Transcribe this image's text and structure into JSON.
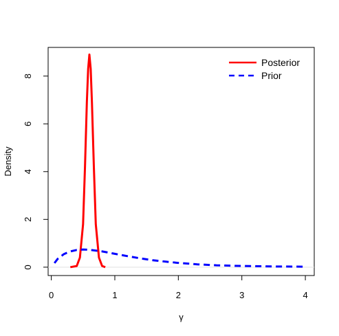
{
  "chart_data": {
    "type": "line",
    "title": "",
    "xlabel": "γ",
    "ylabel": "Density",
    "xlim": [
      -0.05,
      4.14
    ],
    "ylim": [
      -0.35,
      9.2
    ],
    "x_ticks": [
      "0",
      "1",
      "2",
      "3",
      "4"
    ],
    "y_ticks": [
      "0",
      "2",
      "4",
      "6",
      "8"
    ],
    "grid": false,
    "legend_position": "top-right",
    "series": [
      {
        "name": "Posterior",
        "color": "#ff0000",
        "line_style": "solid",
        "x": [
          0.3,
          0.4,
          0.45,
          0.5,
          0.53,
          0.56,
          0.58,
          0.6,
          0.62,
          0.64,
          0.67,
          0.7,
          0.75,
          0.8,
          0.85
        ],
        "y": [
          0.0,
          0.05,
          0.4,
          1.8,
          4.2,
          6.9,
          8.3,
          8.9,
          8.3,
          6.9,
          4.2,
          1.8,
          0.4,
          0.05,
          0.0
        ]
      },
      {
        "name": "Prior",
        "color": "#0000ff",
        "line_style": "dashed",
        "x": [
          0.05,
          0.1,
          0.2,
          0.3,
          0.4,
          0.5,
          0.6,
          0.8,
          1.0,
          1.2,
          1.4,
          1.6,
          1.8,
          2.0,
          2.3,
          2.6,
          3.0,
          3.5,
          4.0
        ],
        "y": [
          0.17,
          0.35,
          0.55,
          0.66,
          0.72,
          0.74,
          0.73,
          0.66,
          0.56,
          0.46,
          0.37,
          0.29,
          0.23,
          0.18,
          0.12,
          0.08,
          0.05,
          0.03,
          0.02
        ]
      }
    ]
  }
}
